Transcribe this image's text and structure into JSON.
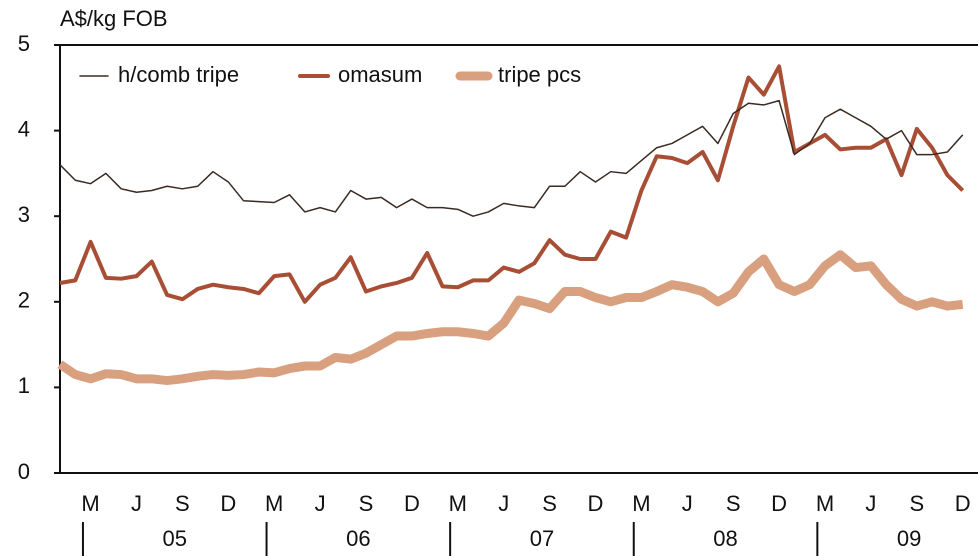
{
  "chart_data": {
    "type": "line",
    "y_axis_label": "A$/kg FOB",
    "categories": [
      null,
      null,
      "M",
      null,
      null,
      "J",
      null,
      null,
      "S",
      null,
      null,
      "D",
      null,
      null,
      "M",
      null,
      null,
      "J",
      null,
      null,
      "S",
      null,
      null,
      "D",
      null,
      null,
      "M",
      null,
      null,
      "J",
      null,
      null,
      "S",
      null,
      null,
      "D",
      null,
      null,
      "M",
      null,
      null,
      "J",
      null,
      null,
      "S",
      null,
      null,
      "D",
      null,
      null,
      "M",
      null,
      null,
      "J",
      null,
      null,
      "S",
      null,
      null,
      "D"
    ],
    "year_labels": [
      "05",
      "06",
      "07",
      "08",
      "09"
    ],
    "ylim": [
      0,
      5
    ],
    "yticks": [
      0,
      1,
      2,
      3,
      4,
      5
    ],
    "grid": false,
    "legend": "top-left",
    "series": [
      {
        "name": "h/comb tripe",
        "color": "#3a2a22",
        "width": 1.5,
        "values": [
          3.6,
          3.42,
          3.38,
          3.5,
          3.32,
          3.28,
          3.3,
          3.35,
          3.32,
          3.35,
          3.52,
          3.4,
          3.18,
          3.17,
          3.16,
          3.25,
          3.05,
          3.1,
          3.05,
          3.3,
          3.2,
          3.22,
          3.1,
          3.2,
          3.1,
          3.1,
          3.08,
          3.0,
          3.05,
          3.15,
          3.12,
          3.1,
          3.35,
          3.35,
          3.52,
          3.4,
          3.52,
          3.5,
          3.65,
          3.8,
          3.85,
          3.95,
          4.05,
          3.85,
          4.2,
          4.32,
          4.3,
          4.35,
          3.72,
          3.85,
          4.15,
          4.25,
          4.15,
          4.05,
          3.9,
          4.0,
          3.72,
          3.72,
          3.75,
          3.95
        ]
      },
      {
        "name": "omasum",
        "color": "#a84e35",
        "width": 4,
        "values": [
          2.22,
          2.25,
          2.7,
          2.28,
          2.27,
          2.3,
          2.47,
          2.08,
          2.03,
          2.15,
          2.2,
          2.17,
          2.15,
          2.1,
          2.3,
          2.32,
          2.0,
          2.2,
          2.28,
          2.52,
          2.12,
          2.18,
          2.22,
          2.28,
          2.57,
          2.18,
          2.17,
          2.25,
          2.25,
          2.4,
          2.35,
          2.45,
          2.72,
          2.55,
          2.5,
          2.5,
          2.82,
          2.75,
          3.3,
          3.7,
          3.68,
          3.62,
          3.75,
          3.42,
          4.05,
          4.62,
          4.42,
          4.75,
          3.75,
          3.85,
          3.95,
          3.78,
          3.8,
          3.8,
          3.9,
          3.48,
          4.02,
          3.8,
          3.48,
          3.3
        ]
      },
      {
        "name": "tripe pcs",
        "color": "#d9a07f",
        "width": 9,
        "values": [
          1.27,
          1.15,
          1.1,
          1.16,
          1.15,
          1.1,
          1.1,
          1.08,
          1.1,
          1.13,
          1.15,
          1.14,
          1.15,
          1.18,
          1.17,
          1.22,
          1.25,
          1.25,
          1.35,
          1.33,
          1.4,
          1.5,
          1.6,
          1.6,
          1.63,
          1.65,
          1.65,
          1.63,
          1.6,
          1.75,
          2.02,
          1.98,
          1.92,
          2.12,
          2.12,
          2.05,
          2.0,
          2.05,
          2.05,
          2.12,
          2.2,
          2.17,
          2.12,
          2.0,
          2.1,
          2.35,
          2.5,
          2.2,
          2.12,
          2.2,
          2.42,
          2.55,
          2.4,
          2.42,
          2.2,
          2.03,
          1.95,
          2.0,
          1.95,
          1.97
        ]
      }
    ]
  }
}
